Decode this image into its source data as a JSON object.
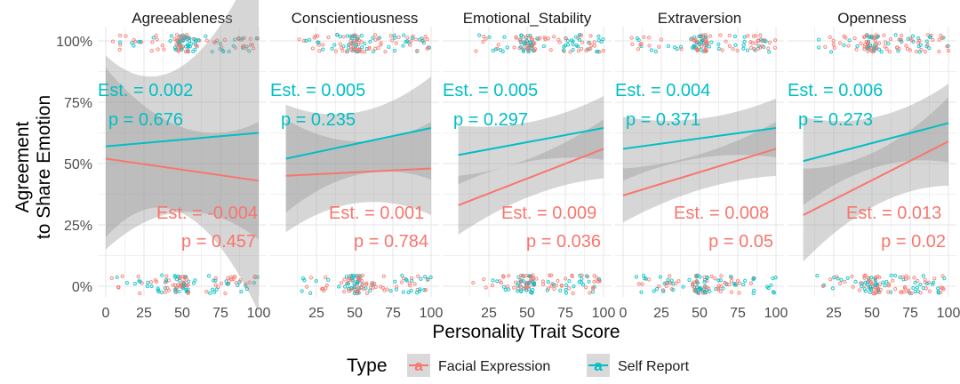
{
  "chart_data": {
    "type": "scatter",
    "xlabel": "Personality Trait Score",
    "ylabel_lines": [
      "Agreement",
      "to Share Emotion"
    ],
    "yticks": [
      "0%",
      "25%",
      "50%",
      "75%",
      "100%"
    ],
    "ylim": [
      0,
      1
    ],
    "grid": true,
    "legend": {
      "title": "Type",
      "position": "bottom",
      "entries": [
        {
          "name": "Facial Expression",
          "color": "#F8766D",
          "glyph": "a"
        },
        {
          "name": "Self Report",
          "color": "#00BFC4",
          "glyph": "a"
        }
      ]
    },
    "colors": {
      "facial": "#F8766D",
      "self": "#00BFC4",
      "ribbon": "#999999"
    },
    "panels": [
      {
        "name": "Agreeableness",
        "xlim": [
          0,
          100
        ],
        "xtick_values": [
          0,
          25,
          50,
          75,
          100
        ],
        "xtick_labels": [
          "0",
          "25",
          "50",
          "75",
          "100"
        ],
        "x_min": 0,
        "x_max": 100,
        "self": {
          "y0": 0.57,
          "y1": 0.625,
          "se_lo": 0.37,
          "se_hi": 0.73,
          "se_mid": 0.05,
          "est": "Est. = 0.002",
          "p": "p = 0.676"
        },
        "facial": {
          "y0": 0.52,
          "y1": 0.43,
          "se_lo": 0.37,
          "se_hi": 0.24,
          "se_mid": 0.04,
          "est": "Est. = -0.004",
          "p": "p = 0.457"
        }
      },
      {
        "name": "Conscientiousness",
        "xlim": [
          0,
          100
        ],
        "xtick_values": [
          25,
          50,
          75,
          100
        ],
        "xtick_labels": [
          "25",
          "50",
          "75",
          "100"
        ],
        "x_min": 5,
        "x_max": 100,
        "self": {
          "y0": 0.52,
          "y1": 0.645,
          "se_lo": 0.22,
          "se_hi": 0.21,
          "se_mid": 0.04,
          "est": "Est. = 0.005",
          "p": "p = 0.235"
        },
        "facial": {
          "y0": 0.45,
          "y1": 0.48,
          "se_lo": 0.23,
          "se_hi": 0.19,
          "se_mid": 0.04,
          "est": "Est. = 0.001",
          "p": "p = 0.784"
        }
      },
      {
        "name": "Emotional_Stability",
        "xlim": [
          0,
          100
        ],
        "xtick_values": [
          25,
          50,
          75,
          100
        ],
        "xtick_labels": [
          "25",
          "50",
          "75",
          "100"
        ],
        "x_min": 5,
        "x_max": 100,
        "self": {
          "y0": 0.535,
          "y1": 0.645,
          "se_lo": 0.12,
          "se_hi": 0.13,
          "se_mid": 0.035,
          "est": "Est. = 0.005",
          "p": "p = 0.297"
        },
        "facial": {
          "y0": 0.33,
          "y1": 0.56,
          "se_lo": 0.12,
          "se_hi": 0.12,
          "se_mid": 0.035,
          "est": "Est. = 0.009",
          "p": "p = 0.036"
        }
      },
      {
        "name": "Extraversion",
        "xlim": [
          0,
          100
        ],
        "xtick_values": [
          0,
          25,
          50,
          75,
          100
        ],
        "xtick_labels": [
          "0",
          "25",
          "50",
          "75",
          "100"
        ],
        "x_min": 0,
        "x_max": 100,
        "self": {
          "y0": 0.56,
          "y1": 0.645,
          "se_lo": 0.13,
          "se_hi": 0.12,
          "se_mid": 0.035,
          "est": "Est. = 0.004",
          "p": "p = 0.371"
        },
        "facial": {
          "y0": 0.37,
          "y1": 0.56,
          "se_lo": 0.11,
          "se_hi": 0.11,
          "se_mid": 0.035,
          "est": "Est. = 0.008",
          "p": "p = 0.05"
        }
      },
      {
        "name": "Openness",
        "xlim": [
          0,
          100
        ],
        "xtick_values": [
          25,
          50,
          75,
          100
        ],
        "xtick_labels": [
          "25",
          "50",
          "75",
          "100"
        ],
        "x_min": 5,
        "x_max": 100,
        "self": {
          "y0": 0.51,
          "y1": 0.665,
          "se_lo": 0.18,
          "se_hi": 0.16,
          "se_mid": 0.035,
          "est": "Est. = 0.006",
          "p": "p = 0.273"
        },
        "facial": {
          "y0": 0.29,
          "y1": 0.59,
          "se_lo": 0.19,
          "se_hi": 0.18,
          "se_mid": 0.035,
          "est": "Est. = 0.013",
          "p": "p = 0.02"
        }
      }
    ]
  }
}
